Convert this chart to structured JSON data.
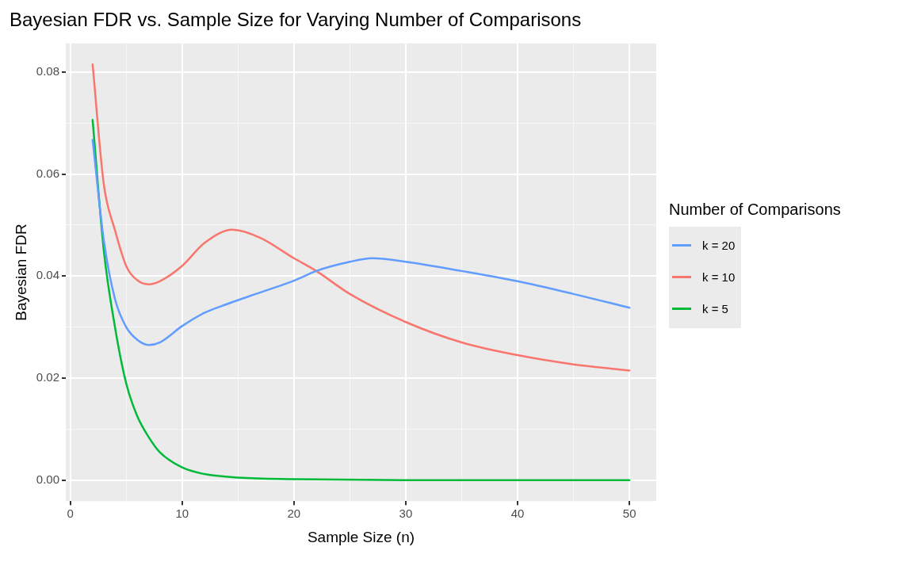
{
  "chart_data": {
    "type": "line",
    "title": "Bayesian FDR vs. Sample Size for Varying Number of Comparisons",
    "xlabel": "Sample Size (n)",
    "ylabel": "Bayesian FDR",
    "legend_title": "Number of Comparisons",
    "legend": "right",
    "grid": true,
    "marker": "none",
    "line_style": "solid",
    "xlim": [
      -0.4,
      52.4
    ],
    "ylim": [
      -0.0041,
      0.0856
    ],
    "xticks": [
      0,
      {
        "value": 5,
        "label": null
      },
      10,
      {
        "value": 15,
        "label": null
      },
      20,
      {
        "value": 25,
        "label": null
      },
      30,
      {
        "value": 35,
        "label": null
      },
      40,
      {
        "value": 45,
        "label": null
      },
      50
    ],
    "yticks": [
      {
        "value": 0,
        "label": "0.00"
      },
      {
        "value": 0.01,
        "label": null
      },
      {
        "value": 0.02,
        "label": "0.02"
      },
      {
        "value": 0.03,
        "label": null
      },
      {
        "value": 0.04,
        "label": "0.04"
      },
      {
        "value": 0.05,
        "label": null
      },
      {
        "value": 0.06,
        "label": "0.06"
      },
      {
        "value": 0.07,
        "label": null
      },
      {
        "value": 0.08,
        "label": "0.08"
      }
    ],
    "series": [
      {
        "name": "k = 20",
        "color": "#619cff",
        "x": [
          2,
          3,
          4,
          5,
          6,
          7,
          8,
          10,
          12,
          14,
          17,
          20,
          22,
          25,
          27,
          30,
          35,
          40,
          45,
          50
        ],
        "values": [
          0.0667,
          0.047,
          0.0355,
          0.03,
          0.0275,
          0.0265,
          0.027,
          0.0302,
          0.0328,
          0.0345,
          0.0368,
          0.0391,
          0.041,
          0.0428,
          0.0435,
          0.0428,
          0.041,
          0.039,
          0.0365,
          0.0338
        ]
      },
      {
        "name": "k = 10",
        "color": "#f8766d",
        "x": [
          2,
          3,
          4,
          5,
          6,
          7,
          8,
          10,
          12,
          14.5,
          17,
          20,
          22,
          25,
          30,
          35,
          40,
          45,
          50
        ],
        "values": [
          0.0815,
          0.058,
          0.049,
          0.042,
          0.0392,
          0.0384,
          0.039,
          0.042,
          0.0465,
          0.0491,
          0.0475,
          0.0435,
          0.041,
          0.0365,
          0.031,
          0.027,
          0.0245,
          0.0227,
          0.0215
        ]
      },
      {
        "name": "k = 5",
        "color": "#00ba38",
        "x": [
          2,
          3,
          4,
          5,
          6,
          7,
          8,
          10,
          12,
          15,
          20,
          30,
          40,
          50
        ],
        "values": [
          0.0706,
          0.045,
          0.03,
          0.019,
          0.0125,
          0.0085,
          0.0055,
          0.0025,
          0.0012,
          0.0005,
          0.0002,
          0.0,
          0.0,
          0.0
        ]
      }
    ]
  }
}
